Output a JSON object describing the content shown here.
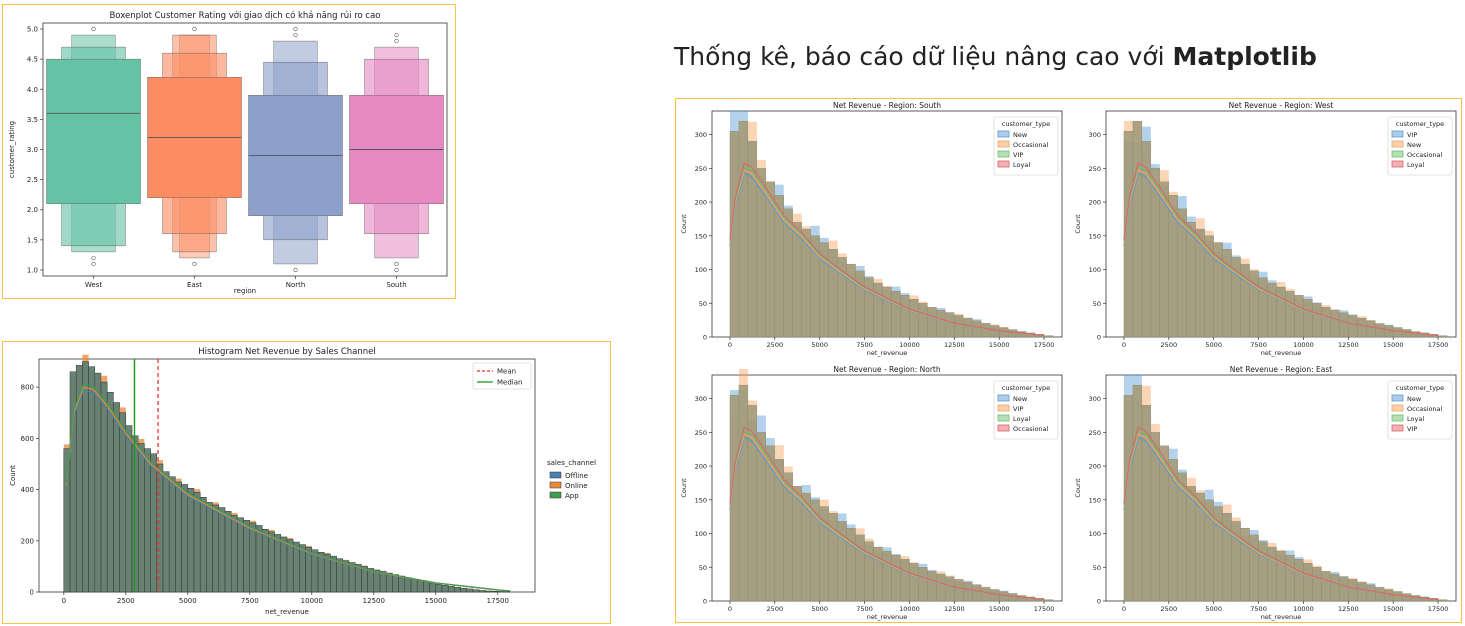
{
  "headline": {
    "text": "Thống kê, báo cáo dữ liệu nâng cao với ",
    "emphasis": "Matplotlib"
  },
  "chart_data": [
    {
      "type": "boxen",
      "title": "Boxenplot Customer Rating với giao dịch có khả năng rủi ro cao",
      "xlabel": "region",
      "ylabel": "customer_rating",
      "ylim": [
        0.9,
        5.1
      ],
      "yticks": [
        1.0,
        1.5,
        2.0,
        2.5,
        3.0,
        3.5,
        4.0,
        4.5,
        5.0
      ],
      "categories": [
        "West",
        "East",
        "North",
        "South"
      ],
      "colors": [
        "#66c2a5",
        "#fc8d62",
        "#8da0cb",
        "#e78ac3"
      ],
      "boxes": [
        {
          "median": 3.6,
          "levels": [
            [
              2.1,
              4.5
            ],
            [
              1.4,
              4.7
            ],
            [
              1.3,
              4.9
            ]
          ],
          "outliers": [
            1.1,
            1.2,
            5.0
          ]
        },
        {
          "median": 3.2,
          "levels": [
            [
              2.2,
              4.2
            ],
            [
              1.6,
              4.6
            ],
            [
              1.3,
              4.9
            ],
            [
              1.2,
              4.9
            ]
          ],
          "outliers": [
            1.1,
            5.0
          ]
        },
        {
          "median": 2.9,
          "levels": [
            [
              1.9,
              3.9
            ],
            [
              1.5,
              4.45
            ],
            [
              1.1,
              4.8
            ]
          ],
          "outliers": [
            1.0,
            4.9,
            5.0
          ]
        },
        {
          "median": 3.0,
          "levels": [
            [
              2.1,
              3.9
            ],
            [
              1.6,
              4.5
            ],
            [
              1.2,
              4.7
            ]
          ],
          "outliers": [
            1.0,
            1.1,
            4.8,
            4.9
          ]
        }
      ]
    },
    {
      "type": "histogram",
      "title": "Histogram Net Revenue by Sales Channel",
      "xlabel": "net_revenue",
      "ylabel": "Count",
      "xlim": [
        -1000,
        19000
      ],
      "ylim": [
        0,
        910
      ],
      "xticks": [
        0,
        2500,
        5000,
        7500,
        10000,
        12500,
        15000,
        17500
      ],
      "yticks": [
        0,
        200,
        400,
        600,
        800
      ],
      "bin_start": 0,
      "bin_width": 250,
      "counts": [
        560,
        860,
        885,
        900,
        880,
        855,
        820,
        780,
        740,
        700,
        650,
        610,
        580,
        560,
        540,
        500,
        470,
        450,
        430,
        420,
        405,
        390,
        370,
        350,
        340,
        330,
        315,
        300,
        290,
        280,
        270,
        260,
        245,
        235,
        225,
        215,
        205,
        195,
        185,
        175,
        165,
        155,
        148,
        140,
        130,
        122,
        115,
        108,
        100,
        92,
        86,
        80,
        74,
        68,
        62,
        56,
        50,
        45,
        40,
        35,
        30,
        26,
        22,
        18,
        15,
        12,
        9,
        6,
        4,
        3,
        2,
        1
      ],
      "kde": [
        [
          100,
          420
        ],
        [
          400,
          700
        ],
        [
          800,
          800
        ],
        [
          1200,
          790
        ],
        [
          1800,
          720
        ],
        [
          2500,
          620
        ],
        [
          3500,
          500
        ],
        [
          5000,
          380
        ],
        [
          7500,
          250
        ],
        [
          10000,
          150
        ],
        [
          12500,
          80
        ],
        [
          15000,
          35
        ],
        [
          17500,
          8
        ],
        [
          18000,
          4
        ]
      ],
      "mean": 3800,
      "median": 2850,
      "legend_lines": [
        {
          "label": "Mean",
          "color": "#e8312d",
          "style": "dashed"
        },
        {
          "label": "Median",
          "color": "#1a9a1a",
          "style": "solid"
        }
      ],
      "legend_title": "sales_channel",
      "series": [
        {
          "name": "Offline",
          "color": "#4a7fb0"
        },
        {
          "name": "Online",
          "color": "#e8893a"
        },
        {
          "name": "App",
          "color": "#3f9e4f"
        }
      ]
    },
    {
      "type": "histogram",
      "title": "Net Revenue - Region: South",
      "xlabel": "net_revenue",
      "ylabel": "Count",
      "xlim": [
        -1000,
        18500
      ],
      "ylim": [
        0,
        335
      ],
      "xticks": [
        0,
        2500,
        5000,
        7500,
        10000,
        12500,
        15000,
        17500
      ],
      "yticks": [
        0,
        50,
        100,
        150,
        200,
        250,
        300
      ],
      "legend_title": "customer_type",
      "series": [
        {
          "name": "New",
          "color": "#5b9bd5"
        },
        {
          "name": "Occasional",
          "color": "#f4a460"
        },
        {
          "name": "VIP",
          "color": "#6cc06c"
        },
        {
          "name": "Loyal",
          "color": "#e0636a"
        }
      ]
    },
    {
      "type": "histogram",
      "title": "Net Revenue - Region: West",
      "xlabel": "net_revenue",
      "ylabel": "Count",
      "xlim": [
        -1000,
        18500
      ],
      "ylim": [
        0,
        335
      ],
      "xticks": [
        0,
        2500,
        5000,
        7500,
        10000,
        12500,
        15000,
        17500
      ],
      "yticks": [
        0,
        50,
        100,
        150,
        200,
        250,
        300
      ],
      "legend_title": "customer_type",
      "series": [
        {
          "name": "VIP",
          "color": "#5b9bd5"
        },
        {
          "name": "New",
          "color": "#f4a460"
        },
        {
          "name": "Occasional",
          "color": "#6cc06c"
        },
        {
          "name": "Loyal",
          "color": "#e0636a"
        }
      ]
    },
    {
      "type": "histogram",
      "title": "Net Revenue - Region: North",
      "xlabel": "net_revenue",
      "ylabel": "Count",
      "xlim": [
        -1000,
        18500
      ],
      "ylim": [
        0,
        335
      ],
      "xticks": [
        0,
        2500,
        5000,
        7500,
        10000,
        12500,
        15000,
        17500
      ],
      "yticks": [
        0,
        50,
        100,
        150,
        200,
        250,
        300
      ],
      "legend_title": "customer_type",
      "series": [
        {
          "name": "New",
          "color": "#5b9bd5"
        },
        {
          "name": "VIP",
          "color": "#f4a460"
        },
        {
          "name": "Loyal",
          "color": "#6cc06c"
        },
        {
          "name": "Occasional",
          "color": "#e0636a"
        }
      ]
    },
    {
      "type": "histogram",
      "title": "Net Revenue - Region: East",
      "xlabel": "net_revenue",
      "ylabel": "Count",
      "xlim": [
        -1000,
        18500
      ],
      "ylim": [
        0,
        335
      ],
      "xticks": [
        0,
        2500,
        5000,
        7500,
        10000,
        12500,
        15000,
        17500
      ],
      "yticks": [
        0,
        50,
        100,
        150,
        200,
        250,
        300
      ],
      "legend_title": "customer_type",
      "series": [
        {
          "name": "New",
          "color": "#5b9bd5"
        },
        {
          "name": "Occasional",
          "color": "#f4a460"
        },
        {
          "name": "Loyal",
          "color": "#6cc06c"
        },
        {
          "name": "VIP",
          "color": "#e0636a"
        }
      ]
    }
  ],
  "region_histogram_bin_width": 500,
  "region_histogram_counts": [
    305,
    320,
    290,
    250,
    230,
    210,
    190,
    170,
    160,
    150,
    140,
    130,
    118,
    108,
    98,
    88,
    80,
    74,
    68,
    62,
    56,
    50,
    44,
    40,
    36,
    32,
    28,
    24,
    20,
    17,
    14,
    11,
    8,
    6,
    4,
    2
  ],
  "region_histogram_kde": [
    [
      0,
      140
    ],
    [
      300,
      200
    ],
    [
      800,
      250
    ],
    [
      1200,
      245
    ],
    [
      2000,
      215
    ],
    [
      3000,
      175
    ],
    [
      4000,
      150
    ],
    [
      5000,
      120
    ],
    [
      6000,
      100
    ],
    [
      7500,
      72
    ],
    [
      10000,
      40
    ],
    [
      12500,
      20
    ],
    [
      15000,
      9
    ],
    [
      17500,
      2
    ]
  ]
}
